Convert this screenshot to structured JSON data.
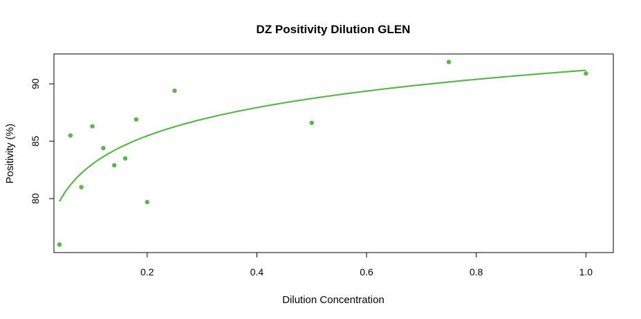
{
  "chart_data": {
    "type": "scatter",
    "title": "DZ Positivity Dilution GLEN",
    "xlabel": "Dilution Concentration",
    "ylabel": "Positivity (%)",
    "xlim": [
      0.03,
      1.05
    ],
    "ylim": [
      75.3,
      92.6
    ],
    "x_ticks": [
      0.2,
      0.4,
      0.6,
      0.8,
      1.0
    ],
    "x_tick_labels": [
      "0.2",
      "0.4",
      "0.6",
      "0.8",
      "1.0"
    ],
    "y_ticks": [
      80,
      85,
      90
    ],
    "y_tick_labels": [
      "80",
      "85",
      "90"
    ],
    "grid": false,
    "legend": "none",
    "color": "#5cb54a",
    "points": [
      {
        "x": 0.04,
        "y": 76.0
      },
      {
        "x": 0.06,
        "y": 85.5
      },
      {
        "x": 0.08,
        "y": 81.0
      },
      {
        "x": 0.1,
        "y": 86.3
      },
      {
        "x": 0.12,
        "y": 84.4
      },
      {
        "x": 0.14,
        "y": 82.9
      },
      {
        "x": 0.16,
        "y": 83.5
      },
      {
        "x": 0.18,
        "y": 86.9
      },
      {
        "x": 0.2,
        "y": 79.7
      },
      {
        "x": 0.25,
        "y": 89.4
      },
      {
        "x": 0.5,
        "y": 86.6
      },
      {
        "x": 0.75,
        "y": 91.9
      },
      {
        "x": 1.0,
        "y": 90.9
      }
    ],
    "fit_curve": {
      "type": "logarithmic",
      "x_range": [
        0.04,
        1.0
      ],
      "intercept": 91.18,
      "slope": 3.55
    }
  }
}
